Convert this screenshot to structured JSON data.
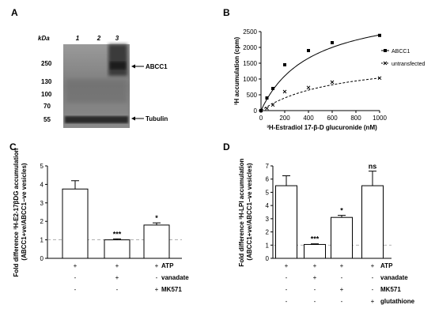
{
  "panels": {
    "A": {
      "label": "A",
      "unit_label": "kDa",
      "lane_labels": [
        "1",
        "2",
        "3"
      ],
      "markers": [
        "250",
        "130",
        "100",
        "70",
        "55"
      ],
      "band_labels": [
        "ABCC1",
        "Tubulin"
      ]
    },
    "B": {
      "label": "B"
    },
    "C": {
      "label": "C"
    },
    "D": {
      "label": "D"
    }
  },
  "chart_data": [
    {
      "panel": "B",
      "type": "scatter",
      "title": "",
      "xlabel": "³H-Estradiol 17-β-D glucuronide (nM)",
      "ylabel": "³H accumulation (cpm)",
      "xlim": [
        0,
        1000
      ],
      "ylim": [
        0,
        2500
      ],
      "xticks": [
        0,
        200,
        400,
        600,
        800,
        1000
      ],
      "yticks": [
        0,
        500,
        1000,
        1500,
        2000,
        2500
      ],
      "legend_position": "right",
      "series": [
        {
          "name": "ABCC1",
          "marker": "square",
          "line": "solid",
          "x": [
            0,
            50,
            100,
            200,
            400,
            600,
            1000
          ],
          "y": [
            0,
            400,
            700,
            1450,
            1900,
            2150,
            2380
          ]
        },
        {
          "name": "untransfected",
          "marker": "x",
          "line": "dashed",
          "x": [
            0,
            50,
            100,
            200,
            400,
            600,
            1000
          ],
          "y": [
            0,
            70,
            180,
            600,
            730,
            900,
            1030
          ]
        }
      ]
    },
    {
      "panel": "C",
      "type": "bar",
      "title": "",
      "ylabel": "Fold difference ³H-E2-17βDG accumulation (ABCC1+ve/ABCC1−ve vesicles)",
      "ylim": [
        0,
        5
      ],
      "yticks": [
        0,
        1,
        2,
        3,
        4,
        5
      ],
      "reference_line": 1,
      "values": [
        3.75,
        1.0,
        1.8
      ],
      "errors": [
        0.45,
        0.05,
        0.12
      ],
      "significance": [
        "",
        "***",
        "*"
      ],
      "condition_rows": [
        {
          "label": "ATP",
          "signs": [
            "+",
            "+",
            "+"
          ]
        },
        {
          "label": "vanadate",
          "signs": [
            "-",
            "+",
            "-"
          ]
        },
        {
          "label": "MK571",
          "signs": [
            "-",
            "-",
            "+"
          ]
        }
      ]
    },
    {
      "panel": "D",
      "type": "bar",
      "title": "",
      "ylabel": "Fold difference ³H-LPI accumulation (ABCC1+ve/ABCC1−ve vesicles)",
      "ylim": [
        0,
        7
      ],
      "yticks": [
        0,
        1,
        2,
        3,
        4,
        5,
        6,
        7
      ],
      "reference_line": 1,
      "values": [
        5.5,
        1.05,
        3.1,
        5.5
      ],
      "errors": [
        0.75,
        0.05,
        0.15,
        1.1
      ],
      "significance": [
        "",
        "***",
        "*",
        "ns"
      ],
      "condition_rows": [
        {
          "label": "ATP",
          "signs": [
            "+",
            "+",
            "+",
            "+"
          ]
        },
        {
          "label": "vanadate",
          "signs": [
            "-",
            "+",
            "-",
            "-"
          ]
        },
        {
          "label": "MK571",
          "signs": [
            "-",
            "-",
            "+",
            "-"
          ]
        },
        {
          "label": "glutathione",
          "signs": [
            "-",
            "-",
            "-",
            "+"
          ]
        }
      ]
    }
  ]
}
